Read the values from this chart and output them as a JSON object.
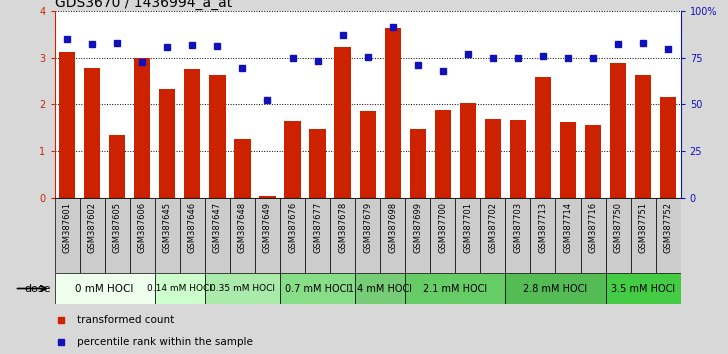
{
  "title": "GDS3670 / 1436994_a_at",
  "samples": [
    "GSM387601",
    "GSM387602",
    "GSM387605",
    "GSM387606",
    "GSM387645",
    "GSM387646",
    "GSM387647",
    "GSM387648",
    "GSM387649",
    "GSM387676",
    "GSM387677",
    "GSM387678",
    "GSM387679",
    "GSM387698",
    "GSM387699",
    "GSM387700",
    "GSM387701",
    "GSM387702",
    "GSM387703",
    "GSM387713",
    "GSM387714",
    "GSM387716",
    "GSM387750",
    "GSM387751",
    "GSM387752"
  ],
  "bar_values": [
    3.12,
    2.78,
    1.35,
    3.0,
    2.33,
    2.75,
    2.62,
    1.26,
    0.05,
    1.65,
    1.48,
    3.22,
    1.86,
    3.62,
    1.48,
    1.88,
    2.04,
    1.68,
    1.66,
    2.58,
    1.63,
    1.57,
    2.88,
    2.62,
    2.15
  ],
  "dot_values": [
    85,
    82,
    83,
    72.5,
    80.5,
    81.5,
    81,
    69.5,
    52.5,
    74.5,
    73,
    87,
    75.5,
    91.25,
    71.25,
    68,
    77,
    74.5,
    74.5,
    75.75,
    75,
    75,
    82,
    83,
    79.5
  ],
  "bar_color": "#cc2200",
  "dot_color": "#1111bb",
  "ylim_left": [
    0,
    4
  ],
  "ylim_right": [
    0,
    100
  ],
  "yticks_left": [
    0,
    1,
    2,
    3,
    4
  ],
  "yticks_right": [
    0,
    25,
    50,
    75,
    100
  ],
  "yticklabels_right": [
    "0",
    "25",
    "50",
    "75",
    "100%"
  ],
  "dose_groups": [
    {
      "label": "0 mM HOCl",
      "start": 0,
      "end": 4,
      "color": "#eeffee",
      "fontsize": 7.5
    },
    {
      "label": "0.14 mM HOCl",
      "start": 4,
      "end": 6,
      "color": "#ccffcc",
      "fontsize": 6.5
    },
    {
      "label": "0.35 mM HOCl",
      "start": 6,
      "end": 9,
      "color": "#aaeaaa",
      "fontsize": 6.5
    },
    {
      "label": "0.7 mM HOCl",
      "start": 9,
      "end": 12,
      "color": "#88dd88",
      "fontsize": 7
    },
    {
      "label": "1.4 mM HOCl",
      "start": 12,
      "end": 14,
      "color": "#77cc77",
      "fontsize": 7
    },
    {
      "label": "2.1 mM HOCl",
      "start": 14,
      "end": 18,
      "color": "#66cc66",
      "fontsize": 7
    },
    {
      "label": "2.8 mM HOCl",
      "start": 18,
      "end": 22,
      "color": "#55bb55",
      "fontsize": 7
    },
    {
      "label": "3.5 mM HOCl",
      "start": 22,
      "end": 25,
      "color": "#44cc44",
      "fontsize": 7
    }
  ],
  "legend_items": [
    {
      "label": "transformed count",
      "color": "#cc2200"
    },
    {
      "label": "percentile rank within the sample",
      "color": "#1111bb"
    }
  ],
  "background_color": "#d8d8d8",
  "plot_bg_color": "#ffffff",
  "xtick_bg_color": "#cccccc",
  "title_fontsize": 10,
  "tick_fontsize": 6,
  "bar_width": 0.65
}
